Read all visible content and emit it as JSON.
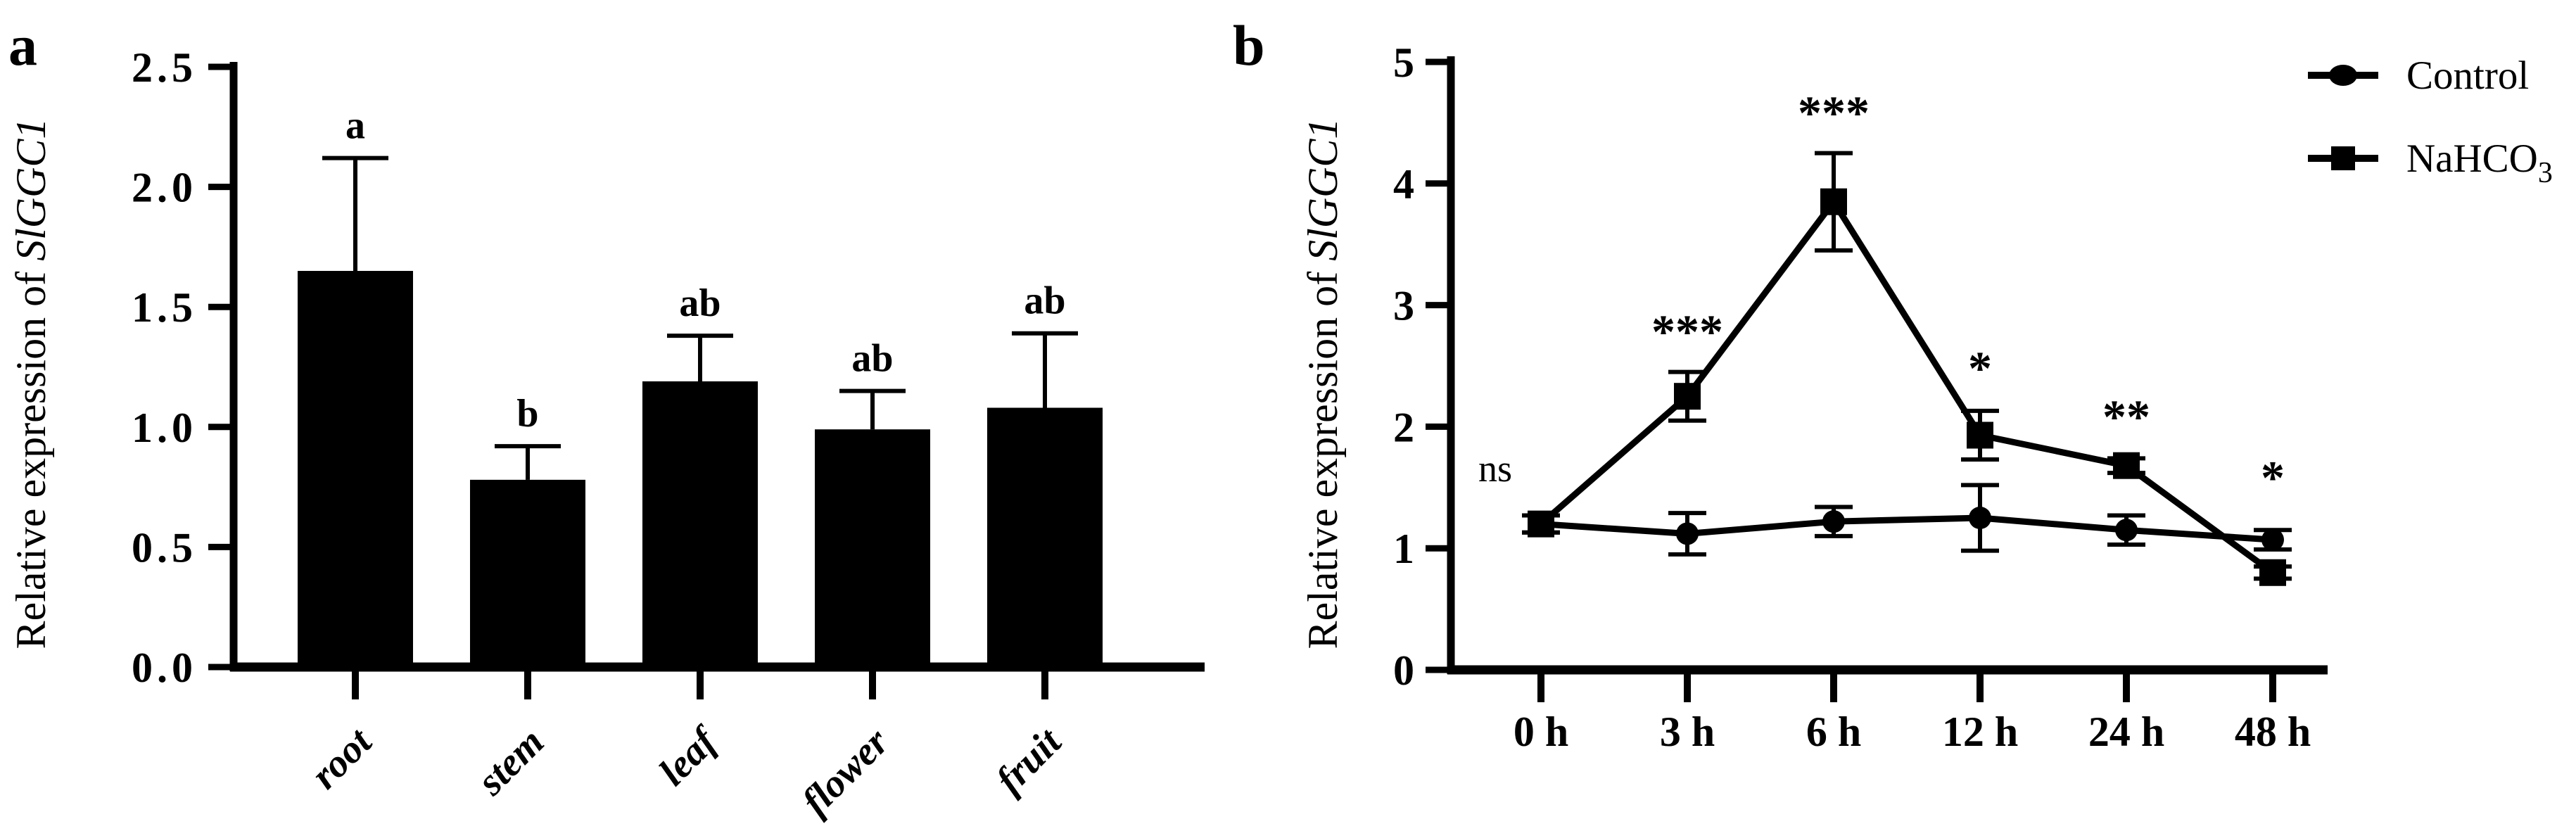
{
  "figure": {
    "background": "#ffffff",
    "ink": "#000000",
    "panels": [
      {
        "label": "a"
      },
      {
        "label": "b"
      }
    ]
  },
  "chart_data": [
    {
      "type": "bar",
      "panel": "a",
      "ylabel": {
        "plain": "Relative expression of ",
        "italic": "SlGGC1"
      },
      "ylim": [
        0,
        2.5
      ],
      "yticks": [
        "0.0",
        "0.5",
        "1.0",
        "1.5",
        "2.0",
        "2.5"
      ],
      "grid": false,
      "categories": [
        "root",
        "stem",
        "leaf",
        "flower",
        "fruit"
      ],
      "values": [
        1.65,
        0.78,
        1.19,
        0.99,
        1.08
      ],
      "upper_errors": [
        0.47,
        0.14,
        0.19,
        0.16,
        0.31
      ],
      "sig_letters": [
        "a",
        "b",
        "ab",
        "ab",
        "ab"
      ],
      "bar_color": "#000000"
    },
    {
      "type": "line",
      "panel": "b",
      "ylabel": {
        "plain": "Relative expression of ",
        "italic": "SlGGC1"
      },
      "ylim": [
        0,
        5
      ],
      "yticks": [
        "0",
        "1",
        "2",
        "3",
        "4",
        "5"
      ],
      "grid": false,
      "categories": [
        "0 h",
        "3 h",
        "6 h",
        "12 h",
        "24 h",
        "48 h"
      ],
      "series": [
        {
          "name": "Control",
          "marker": "circle",
          "values": [
            1.2,
            1.12,
            1.22,
            1.25,
            1.15,
            1.07
          ],
          "errors": [
            0.07,
            0.17,
            0.12,
            0.27,
            0.12,
            0.08
          ]
        },
        {
          "name": "NaHCO3",
          "marker": "square",
          "values": [
            1.2,
            2.25,
            3.85,
            1.93,
            1.68,
            0.8
          ],
          "errors": [
            0.07,
            0.2,
            0.4,
            0.2,
            0.06,
            0.05
          ]
        }
      ],
      "annotations": [
        {
          "text": "ns",
          "kind": "plain",
          "x": 0,
          "y": 1.55,
          "dx": -65
        },
        {
          "text": "***",
          "kind": "stars",
          "x": 1,
          "y": 2.65
        },
        {
          "text": "***",
          "kind": "stars",
          "x": 2,
          "y": 4.45
        },
        {
          "text": "*",
          "kind": "stars",
          "x": 3,
          "y": 2.35
        },
        {
          "text": "**",
          "kind": "stars",
          "x": 4,
          "y": 1.95
        },
        {
          "text": "*",
          "kind": "stars",
          "x": 5,
          "y": 1.45
        }
      ],
      "legend": [
        {
          "label": "Control",
          "marker": "circle"
        },
        {
          "label": "NaHCO",
          "sub": "3",
          "marker": "square"
        }
      ],
      "legend_position": "right"
    }
  ]
}
